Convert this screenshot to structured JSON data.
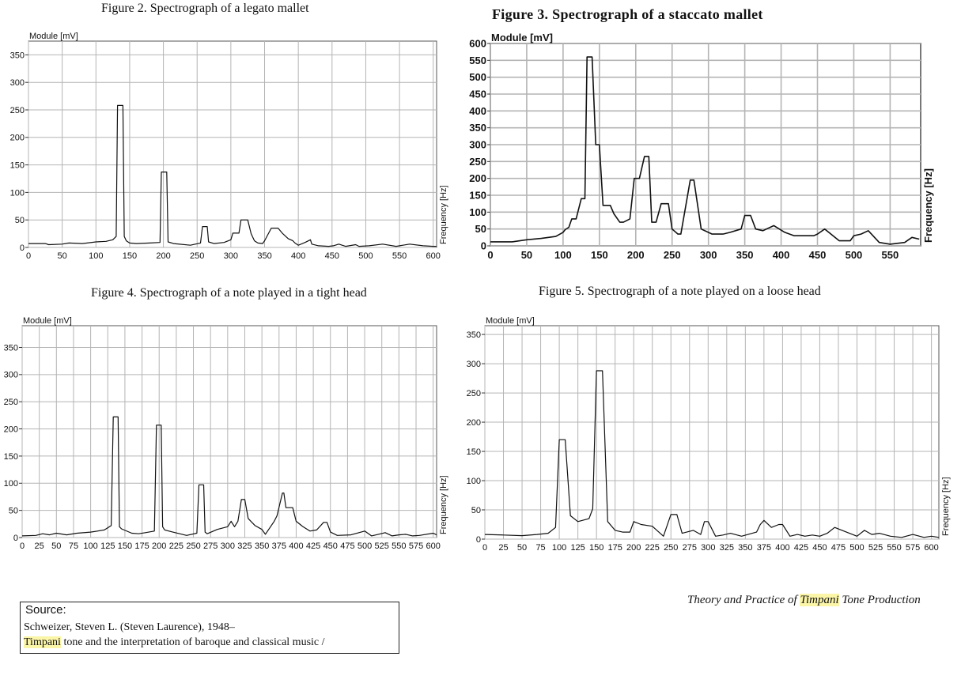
{
  "figure_titles": {
    "fig2": "Figure 2.    Spectrograph of a legato mallet",
    "fig3": "Figure 3.    Spectrograph of a staccato mallet",
    "fig4": "Figure 4.    Spectrograph of a note played in a tight head",
    "fig5": "Figure 5.    Spectrograph of a note played on a loose head"
  },
  "source": {
    "heading": "Source:",
    "author": "Schweizer, Steven L. (Steven Laurence), 1948–",
    "title_highlight": "Timpani",
    "title_rest": " tone and the interpretation of baroque and classical music /"
  },
  "book_title": {
    "before": "Theory and Practice of ",
    "highlight": "Timpani",
    "after": " Tone Production"
  },
  "colors": {
    "highlight": "#fbf5a8",
    "grid": "#b4b4b4",
    "line": "#111111"
  },
  "chart_data": [
    {
      "id": "fig2",
      "type": "line",
      "ylabel": "Module [mV]",
      "xlabel": "Frequency [Hz]",
      "xlim": [
        0,
        605
      ],
      "ylim": [
        0,
        375
      ],
      "xticks": [
        0,
        50,
        100,
        150,
        200,
        250,
        300,
        350,
        400,
        450,
        500,
        550,
        600
      ],
      "yticks": [
        0,
        50,
        100,
        150,
        200,
        250,
        300,
        350
      ],
      "grid": true,
      "x": [
        0,
        25,
        30,
        50,
        60,
        80,
        100,
        115,
        125,
        130,
        132,
        140,
        142,
        145,
        150,
        160,
        180,
        195,
        197,
        205,
        207,
        215,
        240,
        255,
        258,
        265,
        267,
        275,
        290,
        300,
        303,
        312,
        315,
        325,
        330,
        335,
        340,
        347,
        350,
        360,
        370,
        377,
        385,
        392,
        395,
        400,
        410,
        418,
        420,
        430,
        445,
        452,
        460,
        470,
        485,
        490,
        505,
        525,
        545,
        555,
        565,
        585,
        600,
        605
      ],
      "y": [
        7,
        7,
        5,
        6,
        8,
        7,
        10,
        11,
        14,
        20,
        258,
        258,
        20,
        12,
        8,
        7,
        8,
        9,
        137,
        137,
        10,
        7,
        4,
        8,
        38,
        38,
        10,
        7,
        9,
        14,
        26,
        26,
        50,
        50,
        25,
        12,
        8,
        7,
        12,
        35,
        35,
        25,
        16,
        12,
        8,
        4,
        9,
        14,
        6,
        3,
        2,
        3,
        6,
        2,
        5,
        2,
        3,
        6,
        2,
        4,
        6,
        3,
        2,
        2
      ]
    },
    {
      "id": "fig3",
      "type": "line",
      "ylabel": "Module [mV]",
      "xlabel": "Frequency [Hz]",
      "xlim": [
        0,
        592
      ],
      "ylim": [
        0,
        600
      ],
      "xticks": [
        0,
        50,
        100,
        150,
        200,
        250,
        300,
        350,
        400,
        450,
        500,
        550
      ],
      "yticks": [
        0,
        50,
        100,
        150,
        200,
        250,
        300,
        350,
        400,
        450,
        500,
        550,
        600
      ],
      "grid": true,
      "x": [
        0,
        30,
        50,
        70,
        90,
        100,
        103,
        108,
        112,
        118,
        125,
        130,
        133,
        140,
        145,
        150,
        155,
        165,
        170,
        178,
        183,
        192,
        198,
        205,
        212,
        218,
        222,
        228,
        235,
        245,
        250,
        258,
        262,
        275,
        280,
        290,
        305,
        320,
        330,
        345,
        350,
        358,
        365,
        375,
        390,
        405,
        418,
        445,
        450,
        460,
        480,
        495,
        500,
        510,
        520,
        535,
        550,
        570,
        580,
        590
      ],
      "y": [
        12,
        12,
        18,
        22,
        28,
        40,
        48,
        55,
        80,
        80,
        140,
        140,
        560,
        560,
        300,
        300,
        120,
        120,
        95,
        70,
        70,
        80,
        200,
        200,
        265,
        265,
        70,
        70,
        125,
        125,
        50,
        35,
        35,
        195,
        195,
        50,
        35,
        35,
        40,
        50,
        90,
        90,
        50,
        45,
        60,
        40,
        30,
        30,
        35,
        50,
        15,
        15,
        30,
        35,
        45,
        10,
        5,
        10,
        25,
        20
      ]
    },
    {
      "id": "fig4",
      "type": "line",
      "ylabel": "Module [mV]",
      "xlabel": "Frequency [Hz]",
      "xlim": [
        0,
        605
      ],
      "ylim": [
        0,
        390
      ],
      "xticks": [
        0,
        25,
        50,
        75,
        100,
        125,
        150,
        175,
        200,
        225,
        250,
        275,
        300,
        325,
        350,
        375,
        400,
        425,
        450,
        475,
        500,
        525,
        550,
        575,
        600
      ],
      "yticks": [
        0,
        50,
        100,
        150,
        200,
        250,
        300,
        350
      ],
      "grid": true,
      "x": [
        0,
        20,
        30,
        40,
        50,
        65,
        80,
        100,
        110,
        120,
        125,
        130,
        133,
        140,
        142,
        145,
        160,
        170,
        180,
        193,
        196,
        203,
        205,
        208,
        220,
        240,
        255,
        258,
        265,
        267,
        270,
        285,
        300,
        305,
        310,
        315,
        320,
        325,
        330,
        340,
        350,
        355,
        368,
        372,
        380,
        382,
        385,
        395,
        400,
        410,
        420,
        430,
        440,
        445,
        450,
        460,
        480,
        500,
        510,
        520,
        530,
        540,
        550,
        560,
        570,
        580,
        600,
        605
      ],
      "y": [
        3,
        4,
        7,
        5,
        8,
        5,
        8,
        10,
        12,
        14,
        18,
        22,
        222,
        222,
        20,
        16,
        8,
        7,
        9,
        12,
        207,
        207,
        20,
        14,
        10,
        4,
        8,
        97,
        97,
        10,
        7,
        15,
        20,
        30,
        20,
        30,
        70,
        70,
        35,
        22,
        15,
        6,
        30,
        40,
        82,
        82,
        55,
        55,
        30,
        20,
        12,
        14,
        28,
        28,
        10,
        4,
        5,
        12,
        3,
        6,
        9,
        3,
        5,
        6,
        3,
        4,
        8,
        5
      ]
    },
    {
      "id": "fig5",
      "type": "line",
      "ylabel": "Module [mV]",
      "xlabel": "Frequency [Hz]",
      "xlim": [
        0,
        610
      ],
      "ylim": [
        0,
        365
      ],
      "xticks": [
        0,
        25,
        50,
        75,
        100,
        125,
        150,
        175,
        200,
        225,
        250,
        275,
        300,
        325,
        350,
        375,
        400,
        425,
        450,
        475,
        500,
        525,
        550,
        575,
        600
      ],
      "yticks": [
        0,
        50,
        100,
        150,
        200,
        250,
        300,
        350
      ],
      "grid": true,
      "x": [
        0,
        25,
        50,
        70,
        85,
        95,
        100,
        108,
        115,
        125,
        140,
        145,
        150,
        158,
        165,
        175,
        185,
        195,
        200,
        210,
        225,
        240,
        250,
        258,
        265,
        280,
        290,
        295,
        300,
        310,
        320,
        330,
        345,
        365,
        370,
        375,
        385,
        395,
        400,
        410,
        420,
        430,
        440,
        450,
        460,
        470,
        480,
        500,
        510,
        520,
        530,
        545,
        560,
        575,
        590,
        600,
        610
      ],
      "y": [
        8,
        7,
        6,
        8,
        10,
        20,
        170,
        170,
        40,
        30,
        35,
        52,
        288,
        288,
        30,
        15,
        12,
        12,
        30,
        25,
        22,
        5,
        42,
        42,
        10,
        15,
        8,
        30,
        30,
        5,
        7,
        10,
        5,
        12,
        25,
        32,
        20,
        25,
        25,
        5,
        8,
        5,
        7,
        5,
        10,
        20,
        15,
        5,
        15,
        8,
        10,
        5,
        3,
        8,
        3,
        5,
        3
      ]
    }
  ]
}
